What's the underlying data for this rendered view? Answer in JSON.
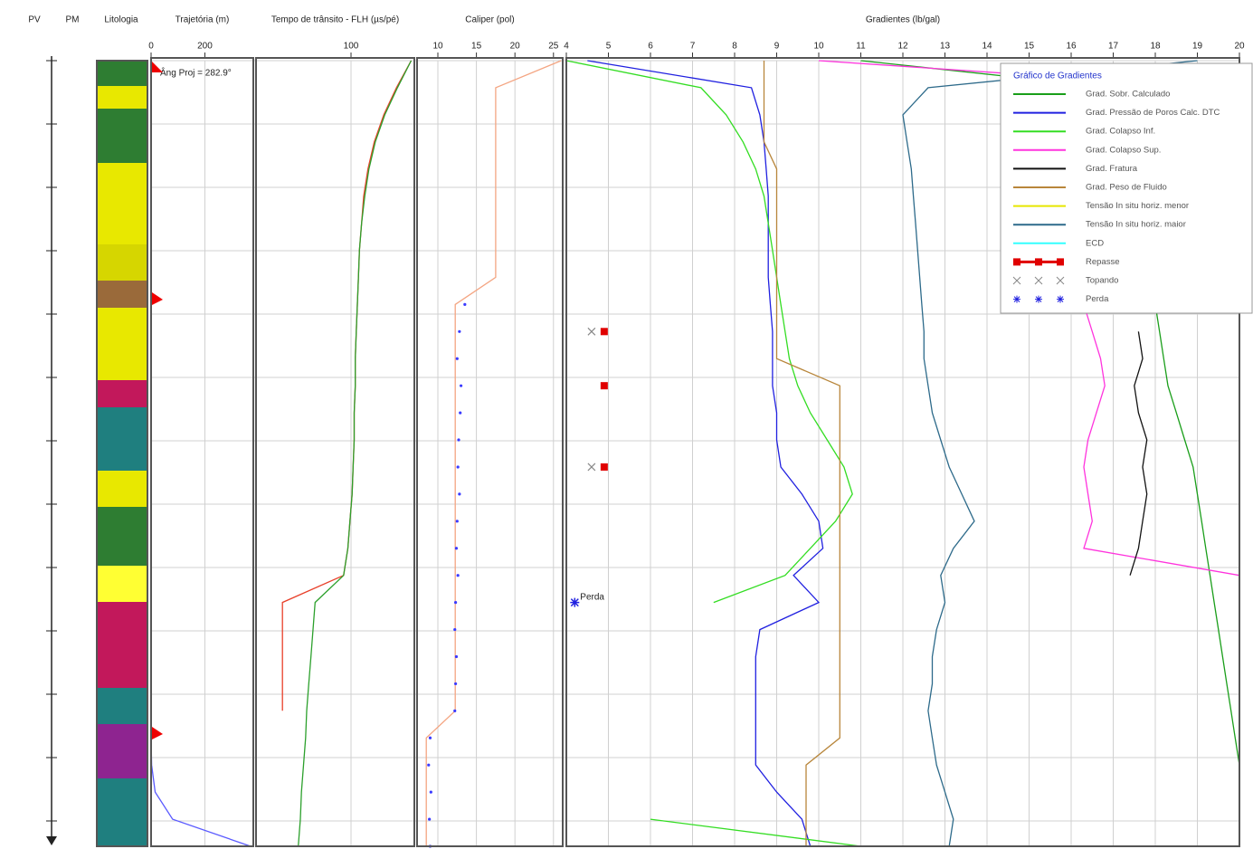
{
  "columns": [
    "PV",
    "PM",
    "Litologia"
  ],
  "chart_data": [
    {
      "type": "line",
      "title": "Trajetória (m)",
      "xlim": [
        0,
        380
      ],
      "xticks": [
        0,
        200
      ],
      "annotation": "Âng Proj = 282.9°",
      "series": [
        {
          "color": "#5a5aff",
          "values": [
            0,
            0,
            0,
            0,
            0,
            0,
            0,
            0,
            0,
            0,
            0,
            0,
            0,
            0,
            0,
            0,
            0,
            0,
            0,
            0,
            0,
            0,
            0,
            0,
            0,
            0,
            2,
            15,
            80,
            370
          ]
        }
      ]
    },
    {
      "type": "line",
      "title": "Tempo de trânsito - FLH (µs/pé)",
      "xlim": [
        10,
        160
      ],
      "xticks": [
        100
      ],
      "series": [
        {
          "color": "#e8402a",
          "values": [
            157,
            143,
            131,
            122,
            116,
            112,
            110,
            108,
            107,
            106,
            105,
            104,
            104,
            103,
            103,
            102,
            101,
            99,
            97,
            93,
            35,
            35,
            35,
            35,
            35,
            null,
            null,
            null,
            null,
            null
          ]
        },
        {
          "color": "#2ca02c",
          "values": [
            157,
            144,
            132,
            123,
            117,
            113,
            110,
            108,
            107,
            106,
            105,
            104,
            104,
            103,
            103,
            102,
            101,
            99,
            97,
            93,
            66,
            64,
            62,
            60,
            58,
            57,
            55,
            53,
            52,
            50
          ]
        }
      ]
    },
    {
      "type": "line",
      "title": "Caliper (pol)",
      "xlim": [
        7.3,
        26.2
      ],
      "xticks": [
        10,
        15,
        20,
        25
      ],
      "series": [
        {
          "color": "#f4a582",
          "values": [
            26,
            17.5,
            17.5,
            17.5,
            17.5,
            17.5,
            17.5,
            17.5,
            17.5,
            12.25,
            12.25,
            12.25,
            12.25,
            12.25,
            12.25,
            12.25,
            12.25,
            12.25,
            12.25,
            12.25,
            12.25,
            12.25,
            12.25,
            12.25,
            12.25,
            8.5,
            8.5,
            8.5,
            8.5,
            8.5
          ]
        },
        {
          "color": "#3a3aff",
          "style": "dots",
          "values": [
            null,
            null,
            null,
            null,
            null,
            null,
            null,
            null,
            null,
            13.5,
            12.8,
            12.5,
            13,
            12.9,
            12.7,
            12.6,
            12.8,
            12.5,
            12.4,
            12.6,
            12.3,
            12.2,
            12.4,
            12.3,
            12.2,
            9.0,
            8.8,
            9.1,
            8.9,
            9.0
          ]
        }
      ]
    },
    {
      "type": "line",
      "title": "Gradientes (lb/gal)",
      "xlim": [
        4,
        20
      ],
      "xticks": [
        4,
        5,
        6,
        7,
        8,
        9,
        10,
        11,
        12,
        13,
        14,
        15,
        16,
        17,
        18,
        19,
        20
      ],
      "legend_title": "Gráfico de Gradientes",
      "annotation": "Perda",
      "series": [
        {
          "name": "Grad. Sobr. Calculado",
          "color": "#1a9e1a",
          "values": [
            11,
            17,
            17.4,
            17.6,
            17.7,
            17.8,
            17.9,
            18,
            18,
            18,
            18.1,
            18.2,
            18.3,
            18.5,
            18.7,
            18.9,
            19.0,
            19.1,
            19.2,
            19.3,
            19.4,
            19.5,
            19.6,
            19.7,
            19.8,
            19.9,
            20,
            20,
            20,
            20
          ]
        },
        {
          "name": "Grad. Pressão de Poros Calc. DTC",
          "color": "#2020e0",
          "values": [
            4.5,
            8.4,
            8.6,
            8.7,
            8.75,
            8.8,
            8.8,
            8.8,
            8.8,
            8.85,
            8.9,
            8.9,
            8.9,
            9.0,
            9.0,
            9.1,
            9.6,
            10.0,
            10.1,
            9.4,
            10.0,
            8.6,
            8.5,
            8.5,
            8.5,
            8.5,
            8.5,
            9.0,
            9.6,
            9.8
          ]
        },
        {
          "name": "Grad. Colapso Inf.",
          "color": "#33dd22",
          "values": [
            4,
            7.2,
            7.8,
            8.2,
            8.5,
            8.7,
            8.8,
            8.9,
            9.0,
            9.1,
            9.2,
            9.3,
            9.5,
            9.8,
            10.2,
            10.6,
            10.8,
            10.4,
            9.8,
            9.2,
            7.5,
            null,
            null,
            null,
            null,
            null,
            null,
            null,
            6.0,
            11.0
          ]
        },
        {
          "name": "Grad. Colapso Sup.",
          "color": "#ff33dd",
          "values": [
            10,
            19.5,
            19.5,
            19.5,
            19.5,
            19.5,
            19.5,
            19.5,
            19.5,
            16.3,
            16.5,
            16.7,
            16.8,
            16.6,
            16.4,
            16.3,
            16.4,
            16.5,
            16.3,
            20,
            null,
            null,
            null,
            null,
            null,
            null,
            null,
            null,
            null,
            null
          ]
        },
        {
          "name": "Grad. Fratura",
          "color": "#111111",
          "values": [
            null,
            null,
            null,
            null,
            null,
            null,
            null,
            null,
            null,
            null,
            17.6,
            17.7,
            17.5,
            17.6,
            17.8,
            17.7,
            17.8,
            17.7,
            17.6,
            17.4,
            null,
            null,
            null,
            null,
            null,
            null,
            null,
            null,
            null,
            null
          ]
        },
        {
          "name": "Grad. Peso de Fluido",
          "color": "#b8863b",
          "values": [
            8.7,
            8.7,
            8.7,
            8.7,
            9.0,
            9.0,
            9.0,
            9.0,
            9.0,
            9.0,
            9.0,
            9.0,
            10.5,
            10.5,
            10.5,
            10.5,
            10.5,
            10.5,
            10.5,
            10.5,
            10.5,
            10.5,
            10.5,
            10.5,
            10.5,
            10.5,
            9.7,
            9.7,
            9.7,
            9.7
          ]
        },
        {
          "name": "Tensão In situ horiz. menor",
          "color": "#e6e600",
          "values": [
            null,
            null,
            null,
            null,
            null,
            null,
            null,
            null,
            null,
            null,
            null,
            null,
            null,
            null,
            null,
            null,
            null,
            null,
            null,
            null,
            null,
            null,
            null,
            null,
            null,
            null,
            null,
            null,
            null,
            null
          ]
        },
        {
          "name": "Tensão In situ horiz. maior",
          "color": "#2d6a8a",
          "values": [
            19,
            12.6,
            12.0,
            12.1,
            12.2,
            12.25,
            12.3,
            12.35,
            12.4,
            12.45,
            12.5,
            12.5,
            12.6,
            12.7,
            12.9,
            13.1,
            13.4,
            13.7,
            13.2,
            12.9,
            13.0,
            12.8,
            12.7,
            12.7,
            12.6,
            12.7,
            12.8,
            13.0,
            13.2,
            13.1
          ]
        },
        {
          "name": "ECD",
          "color": "#33ffff",
          "values": [
            null,
            null,
            null,
            null,
            null,
            null,
            null,
            null,
            null,
            null,
            null,
            null,
            null,
            null,
            null,
            null,
            null,
            null,
            null,
            null,
            null,
            null,
            null,
            null,
            null,
            null,
            null,
            null,
            null,
            null
          ]
        },
        {
          "name": "Repasse",
          "color": "#e00000",
          "style": "square",
          "values": [
            null,
            null,
            null,
            null,
            null,
            null,
            null,
            null,
            null,
            null,
            4.9,
            null,
            4.9,
            null,
            null,
            4.9,
            null,
            null,
            null,
            null,
            null,
            null,
            null,
            null,
            null,
            null,
            null,
            null,
            null,
            null
          ]
        },
        {
          "name": "Topando",
          "color": "#888888",
          "style": "x",
          "values": [
            null,
            null,
            null,
            null,
            null,
            null,
            null,
            null,
            null,
            null,
            4.6,
            null,
            null,
            null,
            null,
            4.6,
            null,
            null,
            null,
            null,
            null,
            null,
            null,
            null,
            null,
            null,
            null,
            null,
            null,
            null
          ]
        },
        {
          "name": "Perda",
          "color": "#2020e0",
          "style": "star",
          "values": [
            null,
            null,
            null,
            null,
            null,
            null,
            null,
            null,
            null,
            null,
            null,
            null,
            null,
            null,
            null,
            null,
            null,
            null,
            null,
            null,
            4.2,
            null,
            null,
            null,
            null,
            null,
            null,
            null,
            null,
            null
          ]
        }
      ]
    }
  ]
}
